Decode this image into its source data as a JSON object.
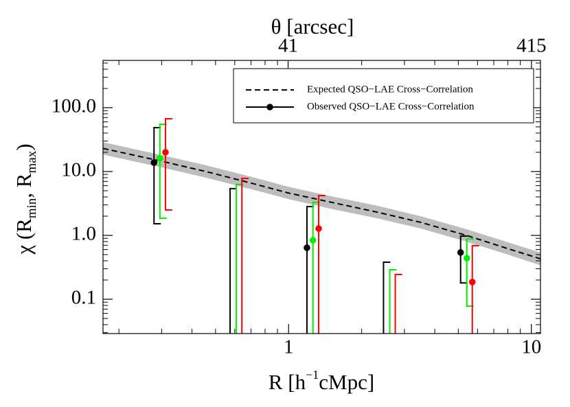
{
  "chart_data": {
    "type": "errorbar",
    "xlabel": [
      "R  [h",
      "−1",
      "cMpc]"
    ],
    "ylabel": [
      "χ (R",
      "min",
      ", R",
      "max",
      ")"
    ],
    "x2label": "θ  [arcsec]",
    "xlog": true,
    "ylog": true,
    "xlim": [
      0.172,
      10.9
    ],
    "xticks": [
      1,
      10
    ],
    "x2lim": [
      7.05,
      452
    ],
    "x2ticks": [
      41,
      415
    ],
    "ylim": [
      0.029,
      550
    ],
    "yticks": [
      {
        "value": 100,
        "label": "100.0"
      },
      {
        "value": 10,
        "label": "10.0"
      },
      {
        "value": 1,
        "label": "1.0"
      },
      {
        "value": 0.1,
        "label": "0.1"
      }
    ],
    "model": {
      "color": "#000000",
      "band_color": "#bdbdbd",
      "x": [
        0.172,
        0.3,
        0.457,
        0.7,
        1,
        1.5,
        2.33,
        3.5,
        5.4,
        8,
        10.9
      ],
      "values": [
        23,
        14.5,
        10,
        6.6,
        4.6,
        3.3,
        2.3,
        1.6,
        1.0,
        0.62,
        0.43
      ],
      "lower": [
        18.4,
        11.6,
        8,
        5.3,
        3.7,
        2.6,
        1.84,
        1.28,
        0.8,
        0.5,
        0.34
      ],
      "upper": [
        28.8,
        18.1,
        12.5,
        8.3,
        5.75,
        4.1,
        2.9,
        2.0,
        1.25,
        0.78,
        0.54
      ]
    },
    "series": [
      {
        "color": "#000000",
        "x": [
          0.279,
          0.574,
          1.19,
          2.46,
          5.11
        ],
        "values": [
          13.8,
          null,
          0.64,
          null,
          0.54
        ],
        "upper": [
          48.7,
          5.4,
          2.83,
          0.38,
          0.975
        ],
        "lower": [
          1.52,
          null,
          null,
          null,
          0.18
        ]
      },
      {
        "color": "#00ee00",
        "x": [
          0.295,
          0.609,
          1.26,
          2.61,
          5.42
        ],
        "values": [
          16.0,
          null,
          0.84,
          null,
          0.44
        ],
        "upper": [
          55,
          6.25,
          3.28,
          0.29,
          0.88
        ],
        "lower": [
          1.86,
          null,
          null,
          null,
          0.078
        ]
      },
      {
        "color": "#ff0000",
        "x": [
          0.311,
          0.642,
          1.33,
          2.75,
          5.71
        ],
        "values": [
          20,
          null,
          1.28,
          null,
          0.186
        ],
        "upper": [
          67,
          7.8,
          4.2,
          0.244,
          0.69
        ],
        "lower": [
          2.5,
          null,
          null,
          null,
          null
        ]
      }
    ],
    "legend": {
      "position": "upper right",
      "entries": [
        "Expected QSO−LAE Cross−Correlation",
        "Observed QSO−LAE Cross−Correlation"
      ]
    }
  }
}
